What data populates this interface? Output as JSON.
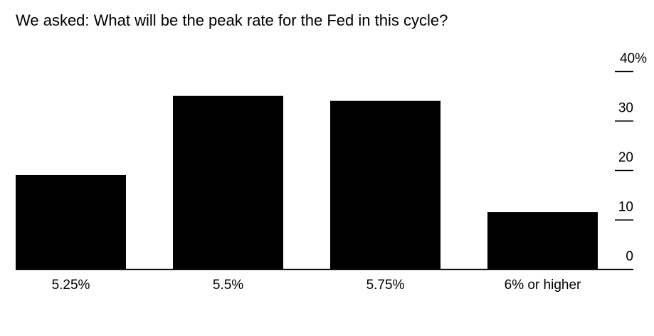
{
  "chart_data": {
    "type": "bar",
    "title": "We asked: What will be the peak rate for the Fed in this cycle?",
    "categories": [
      "5.25%",
      "5.5%",
      "5.75%",
      "6% or higher"
    ],
    "values": [
      19,
      35,
      34,
      11.5
    ],
    "ylim": [
      0,
      40
    ],
    "yticks": [
      0,
      10,
      20,
      30,
      40
    ],
    "ytick_labels": [
      "0",
      "10",
      "20",
      "30",
      "40%"
    ],
    "y_axis_position": "right",
    "grid": false,
    "colors": {
      "bar": "#000000",
      "axis": "#000000",
      "background": "#ffffff"
    }
  }
}
